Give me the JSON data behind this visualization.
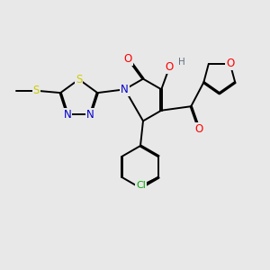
{
  "background_color": "#e8e8e8",
  "bond_color": "#000000",
  "atom_colors": {
    "O": "#ff0000",
    "N": "#0000cd",
    "S": "#cccc00",
    "Cl": "#00aa00",
    "H": "#607080",
    "C": "#000000"
  },
  "font_size_atom": 8.5,
  "line_width": 1.4,
  "dbo": 0.018
}
